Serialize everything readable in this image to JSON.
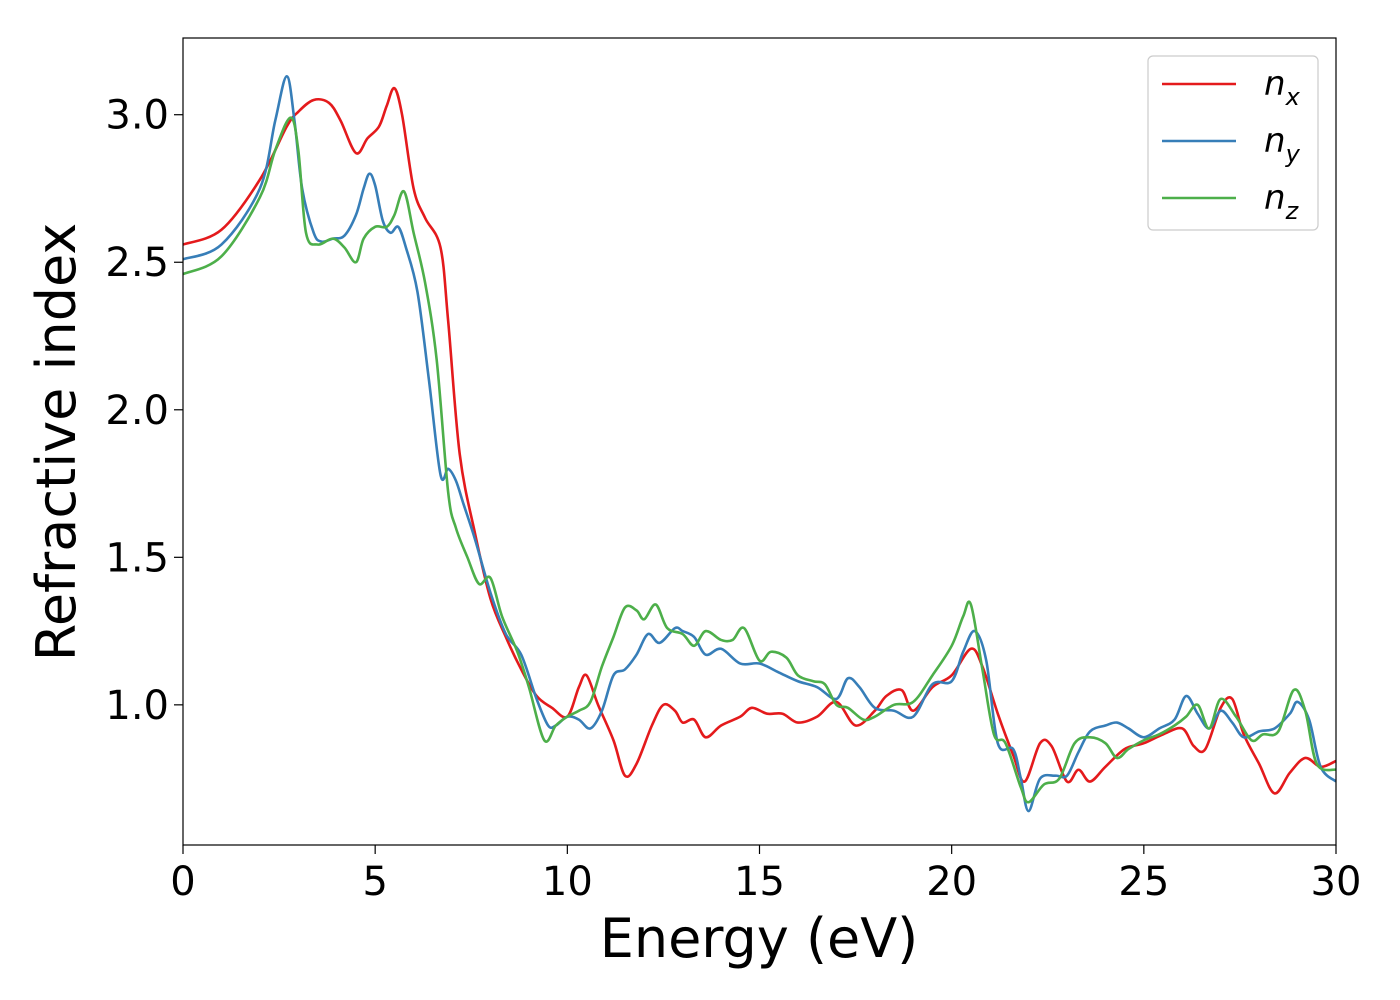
{
  "chart_data": {
    "type": "line",
    "xlabel": "Energy (eV)",
    "ylabel": "Refractive index",
    "xlim": [
      0,
      30
    ],
    "ylim": [
      0.525,
      3.26
    ],
    "xticks": [
      0,
      5,
      10,
      15,
      20,
      25,
      30
    ],
    "xtick_labels": [
      "0",
      "5",
      "10",
      "15",
      "20",
      "25",
      "30"
    ],
    "yticks": [
      1.0,
      1.5,
      2.0,
      2.5,
      3.0
    ],
    "ytick_labels": [
      "1.0",
      "1.5",
      "2.0",
      "2.5",
      "3.0"
    ],
    "grid": false,
    "legend_position": "top-right",
    "series": [
      {
        "name": "n",
        "subscript": "x",
        "color": "#e41a1c",
        "x": [
          0,
          1,
          2,
          2.7,
          3.0,
          3.4,
          3.8,
          4.1,
          4.5,
          4.8,
          5.1,
          5.3,
          5.5,
          5.7,
          6.0,
          6.3,
          6.7,
          6.9,
          7.2,
          7.6,
          8.0,
          8.4,
          8.8,
          9.2,
          9.6,
          10.0,
          10.3,
          10.5,
          10.8,
          11.2,
          11.5,
          11.8,
          12.2,
          12.5,
          12.8,
          13.0,
          13.3,
          13.6,
          14.0,
          14.5,
          14.8,
          15.2,
          15.6,
          16.0,
          16.5,
          17.0,
          17.5,
          18.0,
          18.3,
          18.7,
          19.0,
          19.5,
          20.0,
          20.5,
          20.8,
          21.2,
          21.6,
          21.9,
          22.3,
          22.6,
          23.0,
          23.3,
          23.6,
          24.0,
          24.5,
          25.0,
          25.5,
          26.0,
          26.3,
          26.6,
          27.0,
          27.3,
          27.6,
          28.0,
          28.4,
          28.8,
          29.2,
          29.6,
          30.0
        ],
        "values": [
          2.56,
          2.61,
          2.78,
          2.96,
          3.01,
          3.05,
          3.04,
          2.98,
          2.87,
          2.92,
          2.96,
          3.03,
          3.09,
          3.0,
          2.75,
          2.65,
          2.55,
          2.3,
          1.85,
          1.58,
          1.36,
          1.23,
          1.12,
          1.03,
          0.99,
          0.96,
          1.06,
          1.1,
          1.0,
          0.88,
          0.76,
          0.8,
          0.93,
          1.0,
          0.98,
          0.94,
          0.95,
          0.89,
          0.93,
          0.96,
          0.99,
          0.97,
          0.97,
          0.94,
          0.96,
          1.01,
          0.93,
          0.98,
          1.03,
          1.05,
          0.98,
          1.06,
          1.1,
          1.19,
          1.13,
          0.97,
          0.83,
          0.74,
          0.87,
          0.86,
          0.74,
          0.78,
          0.74,
          0.79,
          0.85,
          0.87,
          0.9,
          0.92,
          0.86,
          0.85,
          0.99,
          1.02,
          0.9,
          0.8,
          0.7,
          0.77,
          0.82,
          0.79,
          0.81
        ]
      },
      {
        "name": "n",
        "subscript": "y",
        "color": "#377eb8",
        "x": [
          0,
          1,
          2,
          2.4,
          2.7,
          2.9,
          3.1,
          3.4,
          3.6,
          3.9,
          4.2,
          4.5,
          4.7,
          4.85,
          5.0,
          5.2,
          5.4,
          5.6,
          5.8,
          6.1,
          6.4,
          6.7,
          6.9,
          7.1,
          7.3,
          7.6,
          8.0,
          8.4,
          8.8,
          9.2,
          9.5,
          9.7,
          10.0,
          10.3,
          10.6,
          10.9,
          11.2,
          11.5,
          11.8,
          12.1,
          12.4,
          12.8,
          13.0,
          13.3,
          13.6,
          14.0,
          14.5,
          15.0,
          15.5,
          16.0,
          16.5,
          17.0,
          17.3,
          17.6,
          18.0,
          18.5,
          19.0,
          19.5,
          20.0,
          20.3,
          20.6,
          20.9,
          21.2,
          21.6,
          21.8,
          22.0,
          22.3,
          22.7,
          23.0,
          23.3,
          23.6,
          24.0,
          24.3,
          24.6,
          25.0,
          25.4,
          25.8,
          26.1,
          26.4,
          26.7,
          27.0,
          27.3,
          27.6,
          28.0,
          28.4,
          28.8,
          29.0,
          29.3,
          29.6,
          30.0
        ],
        "values": [
          2.51,
          2.56,
          2.75,
          2.98,
          3.13,
          2.98,
          2.75,
          2.6,
          2.57,
          2.58,
          2.59,
          2.66,
          2.75,
          2.8,
          2.76,
          2.64,
          2.6,
          2.62,
          2.55,
          2.4,
          2.1,
          1.78,
          1.8,
          1.76,
          1.68,
          1.56,
          1.38,
          1.24,
          1.17,
          1.02,
          0.93,
          0.93,
          0.96,
          0.95,
          0.92,
          0.98,
          1.1,
          1.12,
          1.17,
          1.24,
          1.21,
          1.26,
          1.25,
          1.23,
          1.17,
          1.19,
          1.14,
          1.14,
          1.11,
          1.08,
          1.06,
          1.02,
          1.09,
          1.06,
          0.99,
          0.98,
          0.96,
          1.07,
          1.08,
          1.18,
          1.25,
          1.15,
          0.87,
          0.85,
          0.75,
          0.64,
          0.75,
          0.76,
          0.76,
          0.84,
          0.91,
          0.93,
          0.94,
          0.92,
          0.89,
          0.92,
          0.95,
          1.03,
          0.97,
          0.92,
          0.98,
          0.94,
          0.89,
          0.91,
          0.92,
          0.97,
          1.01,
          0.95,
          0.79,
          0.74
        ]
      },
      {
        "name": "n",
        "subscript": "z",
        "color": "#4daf4a",
        "x": [
          0,
          1,
          2,
          2.4,
          2.8,
          3.0,
          3.2,
          3.5,
          3.9,
          4.2,
          4.5,
          4.7,
          5.0,
          5.3,
          5.5,
          5.75,
          6.0,
          6.3,
          6.6,
          6.9,
          7.1,
          7.4,
          7.7,
          8.0,
          8.3,
          8.7,
          9.0,
          9.4,
          9.7,
          10.0,
          10.3,
          10.6,
          10.9,
          11.2,
          11.5,
          11.8,
          12.0,
          12.3,
          12.6,
          13.0,
          13.3,
          13.6,
          14.0,
          14.3,
          14.6,
          15.0,
          15.3,
          15.7,
          16.0,
          16.4,
          16.7,
          17.0,
          17.3,
          17.7,
          18.0,
          18.5,
          19.0,
          19.5,
          20.0,
          20.3,
          20.5,
          20.8,
          21.1,
          21.4,
          21.8,
          22.0,
          22.4,
          22.8,
          23.2,
          23.6,
          24.0,
          24.3,
          24.6,
          25.0,
          25.4,
          25.8,
          26.1,
          26.4,
          26.7,
          27.0,
          27.4,
          27.8,
          28.1,
          28.5,
          28.9,
          29.2,
          29.5,
          30.0
        ],
        "values": [
          2.46,
          2.52,
          2.72,
          2.88,
          2.99,
          2.88,
          2.6,
          2.56,
          2.58,
          2.55,
          2.5,
          2.58,
          2.62,
          2.62,
          2.66,
          2.74,
          2.6,
          2.43,
          2.17,
          1.72,
          1.6,
          1.5,
          1.41,
          1.43,
          1.3,
          1.18,
          1.06,
          0.88,
          0.93,
          0.96,
          0.98,
          1.01,
          1.13,
          1.23,
          1.33,
          1.32,
          1.29,
          1.34,
          1.26,
          1.24,
          1.2,
          1.25,
          1.22,
          1.22,
          1.26,
          1.15,
          1.18,
          1.16,
          1.1,
          1.08,
          1.07,
          1.0,
          0.99,
          0.95,
          0.96,
          1.0,
          1.01,
          1.1,
          1.2,
          1.3,
          1.34,
          1.12,
          0.9,
          0.87,
          0.72,
          0.67,
          0.73,
          0.75,
          0.87,
          0.89,
          0.87,
          0.82,
          0.85,
          0.88,
          0.9,
          0.93,
          0.96,
          1.0,
          0.92,
          1.02,
          0.96,
          0.88,
          0.9,
          0.91,
          1.05,
          0.98,
          0.8,
          0.78
        ]
      }
    ]
  }
}
